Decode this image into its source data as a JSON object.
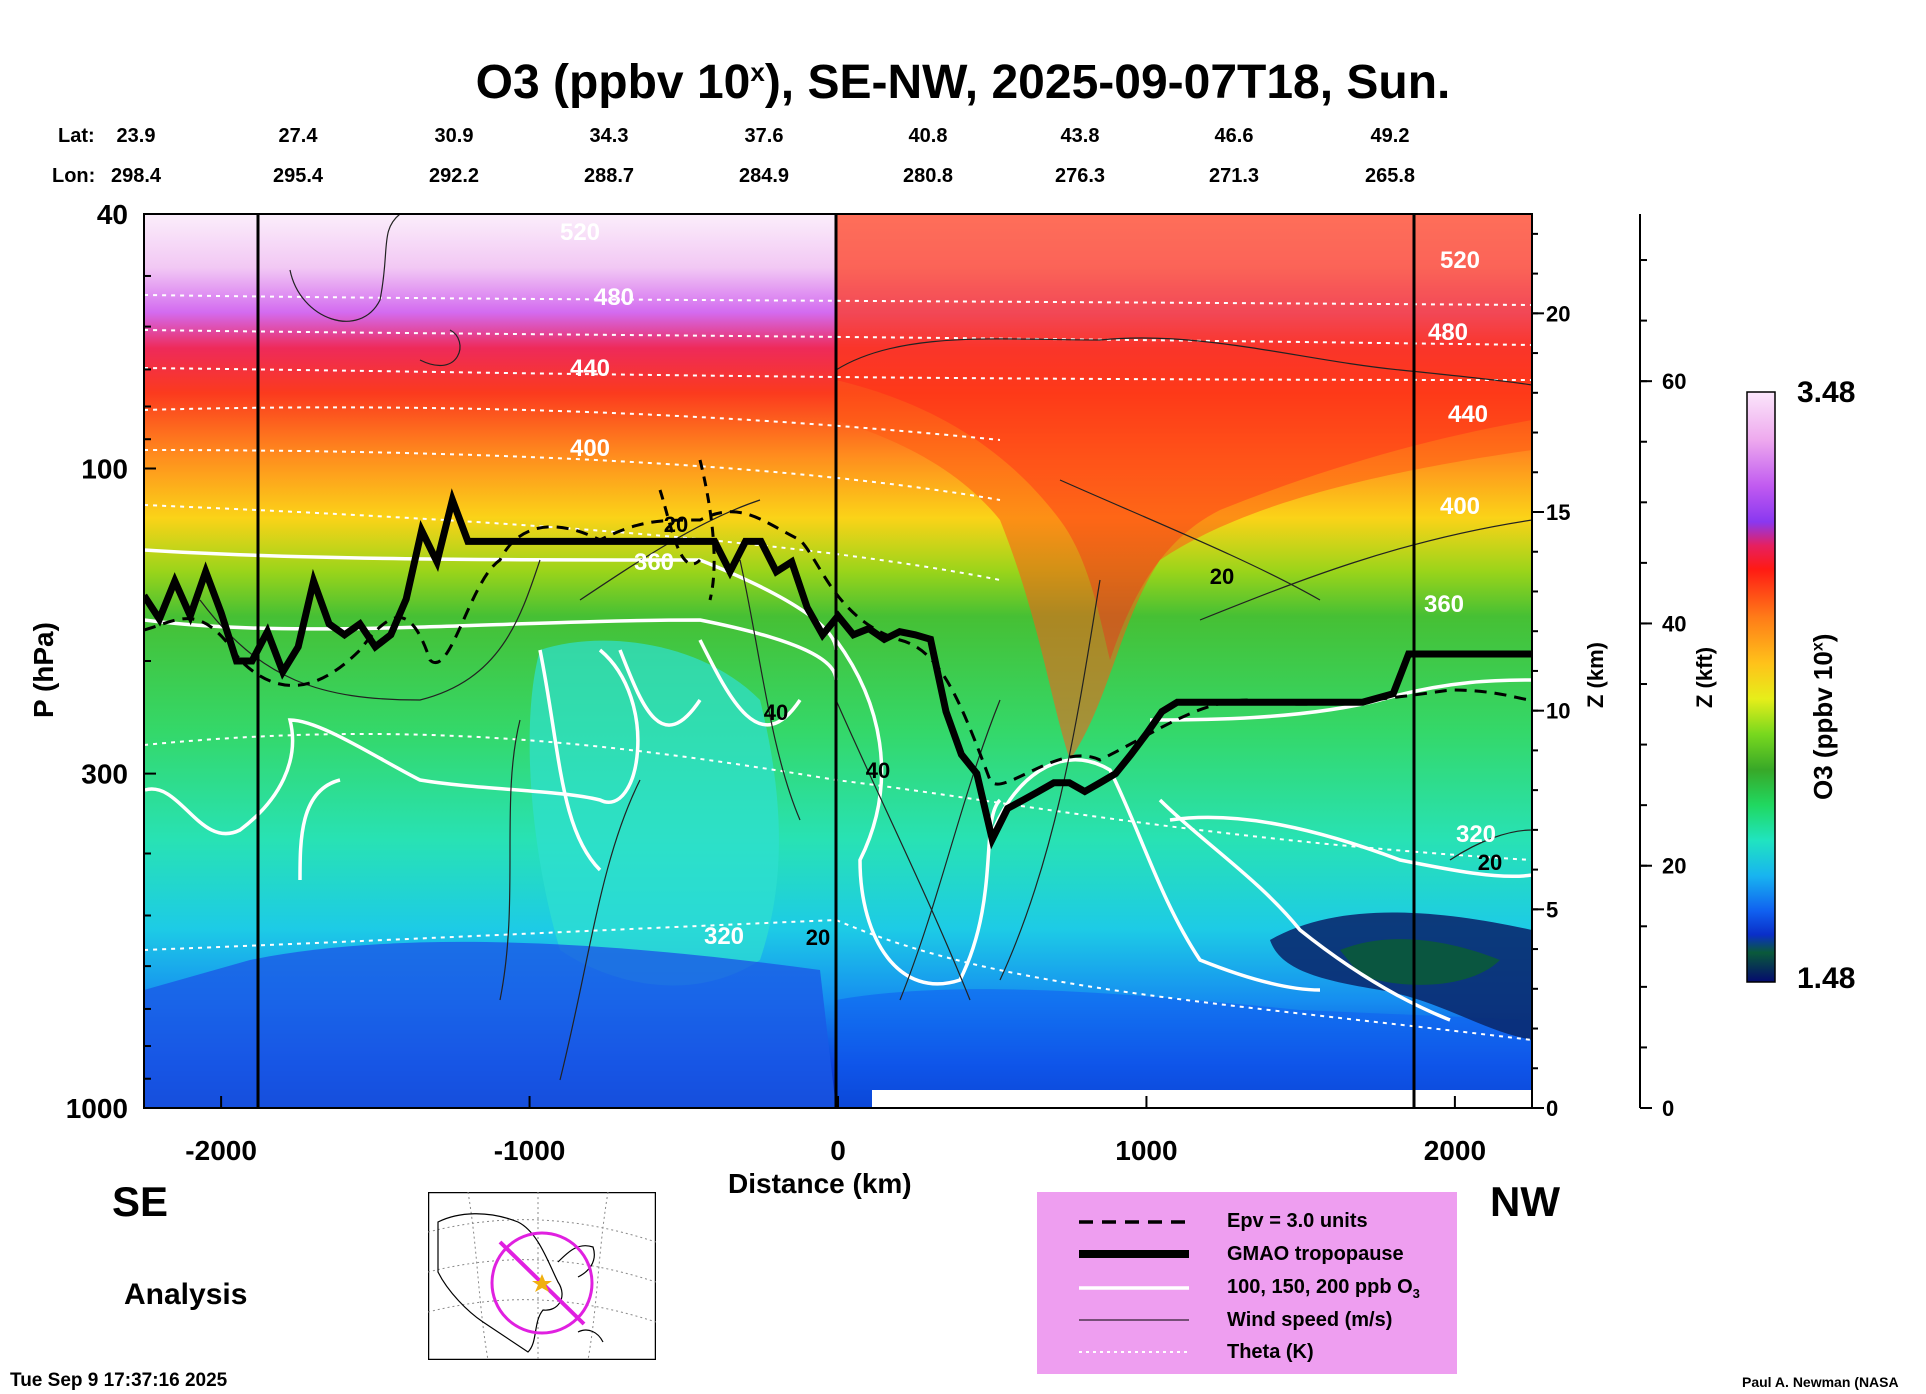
{
  "chart_data": {
    "type": "heatmap",
    "title_prefix": "O3 (ppbv 10",
    "title_sup": "x",
    "title_suffix": "), SE-NW, 2025-09-07T18, Sun.",
    "xlabel": "Distance (km)",
    "ylabel": "P (hPa)",
    "y2label": "Z (km)",
    "y3label": "Z (kft)",
    "cbar_label_prefix": "O3 (ppbv 10",
    "cbar_label_sup": "x",
    "cbar_label_suffix": ")",
    "xlim": [
      -2250,
      2250
    ],
    "plim": [
      1000,
      40
    ],
    "xticks": [
      "-2000",
      "-1000",
      "0",
      "1000",
      "2000"
    ],
    "pticks": [
      "40",
      "100",
      "300",
      "1000"
    ],
    "zkm_ticks": [
      "20",
      "15",
      "10",
      "5",
      "0"
    ],
    "zkft_ticks": [
      "60",
      "40",
      "20",
      "0"
    ],
    "cbar_max": "3.48",
    "cbar_min": "1.48",
    "lat_label": "Lat:",
    "lon_label": "Lon:",
    "lat_values": [
      "23.9",
      "27.4",
      "30.9",
      "34.3",
      "37.6",
      "40.8",
      "43.8",
      "46.6",
      "49.2"
    ],
    "lon_values": [
      "298.4",
      "295.4",
      "292.2",
      "288.7",
      "284.9",
      "280.8",
      "276.3",
      "271.3",
      "265.8"
    ],
    "theta_labels": [
      "520",
      "480",
      "440",
      "400",
      "360",
      "320",
      "520",
      "480",
      "440",
      "400",
      "360",
      "320"
    ],
    "wind_labels": [
      "20",
      "40",
      "40",
      "20",
      "20",
      "20"
    ],
    "tropopause": {
      "distance_km": [
        -2250,
        -2200,
        -2150,
        -2100,
        -2050,
        -2000,
        -1950,
        -1900,
        -1850,
        -1800,
        -1750,
        -1700,
        -1650,
        -1600,
        -1550,
        -1500,
        -1450,
        -1400,
        -1350,
        -1300,
        -1250,
        -1200,
        -1150,
        -1100,
        -1000,
        -900,
        -800,
        -700,
        -600,
        -500,
        -400,
        -350,
        -300,
        -250,
        -200,
        -150,
        -100,
        -50,
        0,
        50,
        100,
        150,
        200,
        250,
        300,
        350,
        400,
        450,
        500,
        550,
        600,
        650,
        700,
        750,
        800,
        850,
        900,
        950,
        1000,
        1050,
        1100,
        1200,
        1300,
        1400,
        1500,
        1600,
        1700,
        1800,
        1850,
        1900,
        2000,
        2100,
        2250
      ],
      "pressure_hPa": [
        158,
        172,
        150,
        170,
        145,
        168,
        200,
        200,
        180,
        208,
        190,
        150,
        175,
        182,
        175,
        190,
        182,
        160,
        125,
        140,
        112,
        130,
        130,
        130,
        130,
        130,
        130,
        130,
        130,
        130,
        130,
        145,
        130,
        130,
        145,
        140,
        165,
        182,
        170,
        182,
        178,
        185,
        180,
        182,
        185,
        240,
        280,
        300,
        380,
        340,
        330,
        320,
        310,
        310,
        320,
        310,
        300,
        280,
        260,
        240,
        232,
        232,
        232,
        232,
        232,
        232,
        232,
        225,
        195,
        195,
        195,
        195,
        195
      ]
    },
    "legend_items": [
      {
        "label": "Epv = 3.0 units"
      },
      {
        "label": "GMAO tropopause"
      },
      {
        "label_prefix": "100, 150, 200 ppb O",
        "label_sub": "3"
      },
      {
        "label": "Wind speed (m/s)"
      },
      {
        "label": "Theta (K)"
      }
    ],
    "direction_left": "SE",
    "direction_right": "NW",
    "analysis_label": "Analysis",
    "timestamp": "Tue Sep  9 17:37:16 2025",
    "credit": "Paul A. Newman (NASA"
  }
}
